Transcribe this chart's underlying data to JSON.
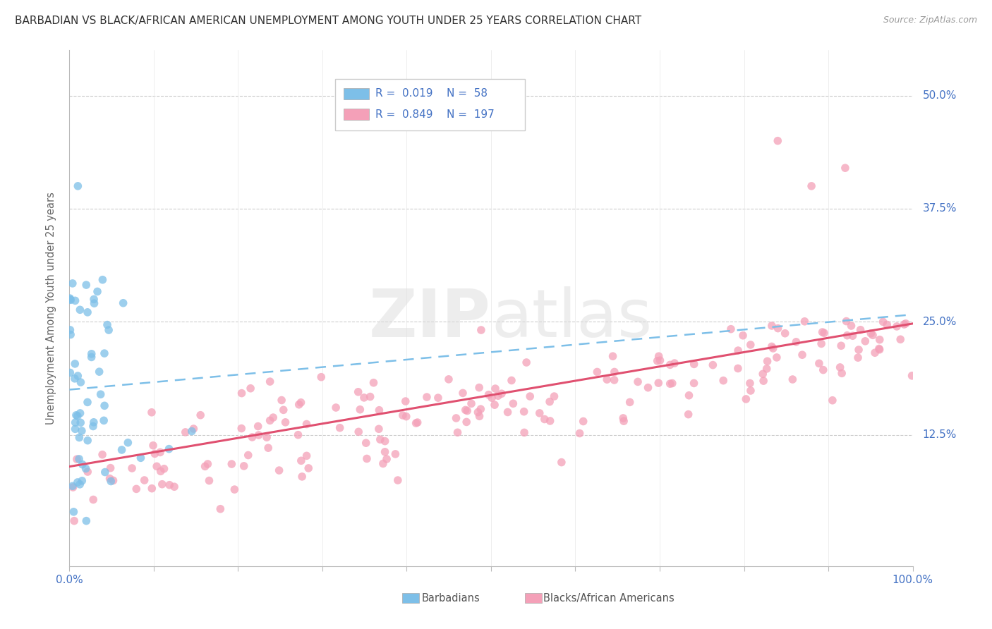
{
  "title": "BARBADIAN VS BLACK/AFRICAN AMERICAN UNEMPLOYMENT AMONG YOUTH UNDER 25 YEARS CORRELATION CHART",
  "source": "Source: ZipAtlas.com",
  "ylabel": "Unemployment Among Youth under 25 years",
  "xlim": [
    0.0,
    1.0
  ],
  "ylim": [
    -0.02,
    0.55
  ],
  "xticks": [
    0.0,
    0.1,
    0.2,
    0.3,
    0.4,
    0.5,
    0.6,
    0.7,
    0.8,
    0.9,
    1.0
  ],
  "yticks": [
    0.125,
    0.25,
    0.375,
    0.5
  ],
  "yticklabels": [
    "12.5%",
    "25.0%",
    "37.5%",
    "50.0%"
  ],
  "barbadian_color": "#7DBFE8",
  "black_color": "#F4A0B8",
  "barbadian_line_color": "#7DBFE8",
  "black_line_color": "#E05070",
  "text_color": "#4472C4",
  "watermark_color": "#DDDDDD",
  "background_color": "#FFFFFF",
  "grid_color": "#CCCCCC",
  "barbadians_label": "Barbadians",
  "blacks_label": "Blacks/African Americans",
  "legend_r1": "R =  0.019",
  "legend_n1": "N =  58",
  "legend_r2": "R =  0.849",
  "legend_n2": "N =  197"
}
